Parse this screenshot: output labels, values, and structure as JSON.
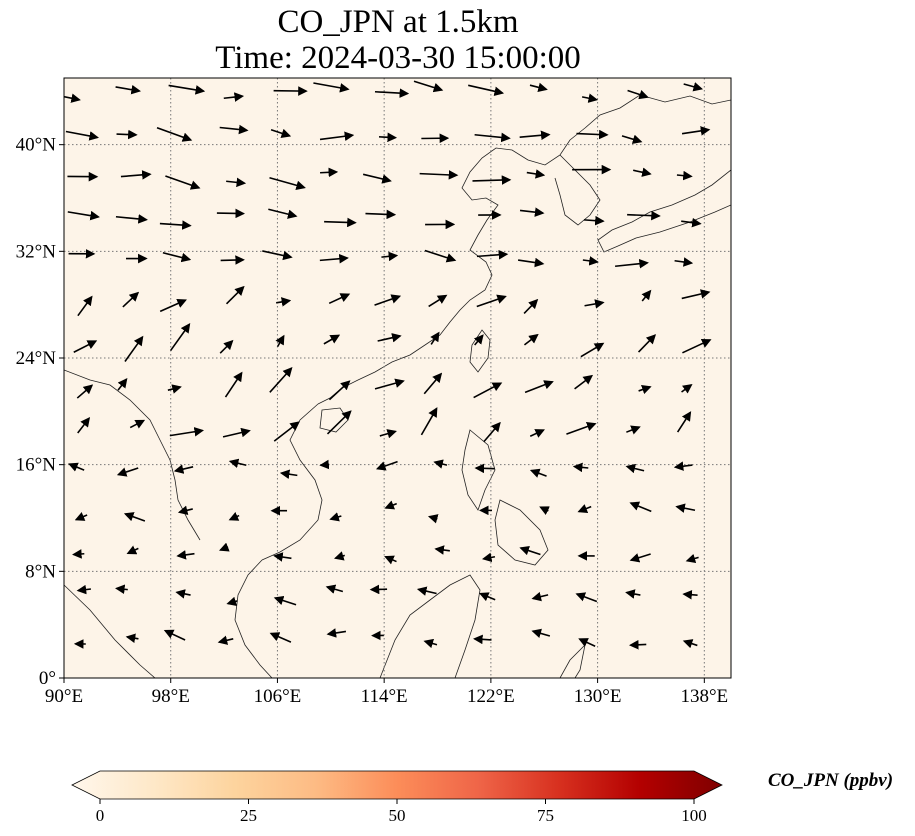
{
  "title": {
    "line1": "CO_JPN at 1.5km",
    "line2": "Time: 2024-03-30 15:00:00"
  },
  "map": {
    "projection": "PlateCarree",
    "lon_range": [
      90,
      140
    ],
    "lat_range": [
      0,
      45
    ],
    "gridlines": "dotted",
    "background_color": "#fdf4e8",
    "lon_ticks": [
      90,
      98,
      106,
      114,
      122,
      130,
      138
    ],
    "lon_tick_labels": [
      "90°E",
      "98°E",
      "106°E",
      "114°E",
      "122°E",
      "130°E",
      "138°E"
    ],
    "lat_ticks": [
      0,
      8,
      16,
      24,
      32,
      40
    ],
    "lat_tick_labels": [
      "0°",
      "8°N",
      "16°N",
      "24°N",
      "32°N",
      "40°N"
    ]
  },
  "colorbar": {
    "label": "CO_JPN (ppbv)",
    "min": 0,
    "max": 100,
    "extend": "both",
    "colormap": "OrRd",
    "tick_labels": [
      "0",
      "25",
      "50",
      "75",
      "100"
    ],
    "ticks": [
      0,
      25,
      50,
      75,
      100
    ],
    "colors": [
      "#fff7ec",
      "#fee8c8",
      "#fdd49e",
      "#fdbb84",
      "#fc8d59",
      "#ef6548",
      "#d7301f",
      "#b30000",
      "#7f0000"
    ]
  }
}
